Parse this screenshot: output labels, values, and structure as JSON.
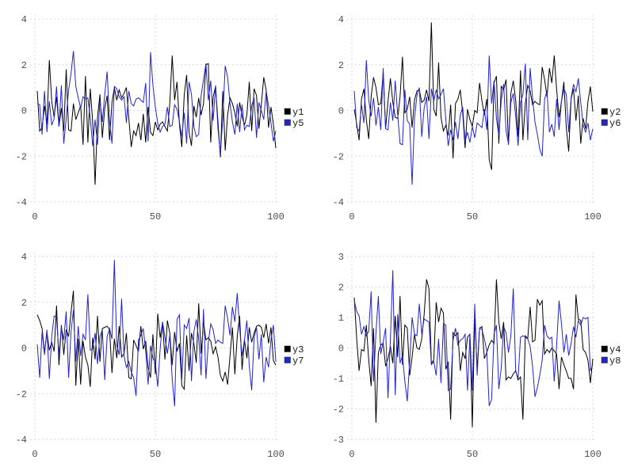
{
  "page": {
    "background": "#ffffff"
  },
  "style": {
    "grid_color": "#d8d8e2",
    "tick_label_color": "#4d4d57",
    "legend_text_color": "#1a1a1a",
    "series_black": "#000000",
    "series_blue": "#2323d0"
  },
  "chart_data": [
    {
      "type": "line",
      "position": "top-left",
      "title": "",
      "xlabel": "",
      "ylabel": "",
      "xlim": [
        0,
        100
      ],
      "ylim": [
        -4,
        4
      ],
      "xticks": [
        0,
        50,
        100
      ],
      "yticks": [
        -4,
        -2,
        0,
        2,
        4
      ],
      "x_start": 1,
      "x_step": 1,
      "grid": true,
      "legend_position": "right-middle",
      "series": [
        {
          "name": "y1",
          "color": "#000000",
          "values": [
            0.85,
            -0.9,
            -0.75,
            0.2,
            -0.6,
            2.2,
            0.4,
            -0.3,
            0.6,
            -0.7,
            0.1,
            -0.9,
            1.8,
            -0.85,
            -0.9,
            0.3,
            -0.4,
            -0.1,
            0.2,
            -1.5,
            1.5,
            -1.4,
            0.95,
            -0.5,
            -3.25,
            -0.3,
            0.7,
            -1.2,
            0.1,
            0.65,
            -1.3,
            0.35,
            1.0,
            0.45,
            0.9,
            0.55,
            0.75,
            1.0,
            -0.35,
            -1.6,
            -0.9,
            -1.1,
            -0.55,
            -1.3,
            -0.15,
            -1.4,
            0.15,
            -0.95,
            -1.1,
            -0.5,
            -0.85,
            -0.6,
            -0.5,
            -0.7,
            -0.9,
            0.3,
            2.4,
            0.45,
            1.25,
            -0.6,
            -1.6,
            0.7,
            1.55,
            -0.95,
            -1.55,
            0.2,
            -0.3,
            0.55,
            -0.2,
            0.3,
            2.0,
            2.05,
            -1.4,
            0.6,
            1.05,
            -0.5,
            -2.05,
            0.85,
            -1.75,
            -0.2,
            0.55,
            0.3,
            -0.1,
            -0.7,
            0.35,
            -0.25,
            -0.65,
            -0.2,
            1.25,
            -0.9,
            0.95,
            0.65,
            -0.8,
            0.25,
            1.45,
            0.9,
            -0.75,
            0.15,
            -0.6,
            -1.65
          ]
        },
        {
          "name": "y5",
          "color": "#2323d0",
          "values": [
            0.3,
            0.25,
            -1.05,
            0.85,
            -0.95,
            0.4,
            -0.65,
            -0.35,
            1.05,
            -0.7,
            1.1,
            -1.45,
            -0.35,
            0.9,
            1.6,
            2.6,
            1.05,
            0.55,
            0.1,
            0.6,
            0.5,
            0.55,
            -0.35,
            -1.55,
            -0.4,
            -1.5,
            0.45,
            -0.5,
            0.7,
            1.7,
            -0.45,
            -1.45,
            1.05,
            0.95,
            0.6,
            0.45,
            0.6,
            -0.55,
            0.85,
            0.3,
            0.2,
            0.5,
            0.55,
            0.45,
            0.35,
            1.2,
            -1.35,
            2.55,
            1.1,
            0.15,
            -0.55,
            -0.95,
            -0.7,
            -0.6,
            0.15,
            -0.7,
            -0.65,
            0.25,
            0.05,
            -0.5,
            -1.15,
            -0.1,
            -1.45,
            1.25,
            0.7,
            -0.7,
            -1.15,
            -1.05,
            0.65,
            1.35,
            2.05,
            0.45,
            1.3,
            -0.45,
            1.1,
            -0.8,
            -1.9,
            -0.35,
            1.95,
            1.45,
            0.3,
            -0.5,
            -1.05,
            0.3,
            -0.95,
            0.25,
            -0.85,
            -0.65,
            -0.7,
            0.2,
            0.55,
            -1.2,
            0.35,
            0.0,
            -0.4,
            0.85,
            0.2,
            -0.55,
            -1.35,
            -0.9
          ]
        }
      ]
    },
    {
      "type": "line",
      "position": "top-right",
      "title": "",
      "xlabel": "",
      "ylabel": "",
      "xlim": [
        0,
        100
      ],
      "ylim": [
        -4,
        4
      ],
      "xticks": [
        0,
        50,
        100
      ],
      "yticks": [
        -4,
        -2,
        0,
        2,
        4
      ],
      "x_start": 1,
      "x_step": 1,
      "grid": true,
      "legend_position": "right-middle",
      "series": [
        {
          "name": "y2",
          "color": "#000000",
          "values": [
            0.05,
            -0.6,
            -1.3,
            0.5,
            0.95,
            -0.4,
            -1.25,
            0.6,
            1.45,
            1.0,
            0.25,
            0.3,
            1.65,
            -0.8,
            0.4,
            1.4,
            0.35,
            -0.3,
            -0.35,
            0.6,
            2.35,
            -0.1,
            0.05,
            0.6,
            -0.75,
            0.45,
            0.85,
            0.9,
            0.35,
            0.45,
            0.9,
            0.4,
            3.85,
            0.05,
            -0.25,
            2.1,
            -0.3,
            -0.9,
            -0.65,
            -1.1,
            0.25,
            -2.1,
            0.3,
            0.5,
            0.9,
            -0.1,
            -1.65,
            0.05,
            -0.4,
            -0.7,
            0.0,
            -0.1,
            1.2,
            0.4,
            -0.2,
            0.5,
            -2.15,
            -2.6,
            1.2,
            1.5,
            -1.45,
            1.05,
            0.9,
            1.35,
            -1.5,
            0.75,
            1.3,
            0.45,
            -1.15,
            1.75,
            -1.3,
            0.3,
            1.1,
            0.85,
            0.25,
            0.4,
            0.3,
            0.25,
            1.9,
            1.35,
            0.6,
            1.85,
            1.2,
            2.4,
            0.9,
            -0.3,
            0.4,
            1.25,
            -0.75,
            -1.8,
            0.5,
            0.95,
            -0.45,
            0.65,
            -1.45,
            -0.35,
            -0.8,
            0.4,
            1.05,
            -0.05
          ]
        },
        {
          "name": "y6",
          "color": "#2323d0",
          "values": [
            0.85,
            -0.75,
            -0.9,
            0.25,
            -0.55,
            2.2,
            0.45,
            -0.25,
            0.55,
            -0.65,
            0.15,
            -0.85,
            1.85,
            -0.8,
            -0.85,
            0.35,
            -0.45,
            1.3,
            -0.15,
            -1.45,
            -1.5,
            0.9,
            -0.45,
            -0.6,
            -3.25,
            -0.35,
            0.65,
            1.0,
            -1.15,
            0.1,
            0.6,
            -1.25,
            0.95,
            0.4,
            0.9,
            0.5,
            0.7,
            0.95,
            -0.4,
            -1.55,
            -0.85,
            -1.3,
            -0.5,
            -1.25,
            -0.2,
            0.15,
            -1.35,
            -0.95,
            -1.4,
            -0.7,
            -1.2,
            -0.55,
            -0.65,
            -0.75,
            0.05,
            -0.85,
            2.4,
            0.3,
            1.3,
            -0.35,
            -1.1,
            0.45,
            1.15,
            -0.9,
            -1.45,
            0.35,
            0.75,
            -0.25,
            -1.55,
            0.35,
            0.7,
            2.05,
            -1.3,
            1.85,
            0.55,
            -0.5,
            -1.05,
            -1.7,
            -2.0,
            0.5,
            0.85,
            -0.95,
            -0.6,
            -1.15,
            0.5,
            -0.85,
            0.4,
            0.95,
            0.7,
            -0.95,
            0.55,
            1.15,
            0.8,
            1.4,
            0.35,
            -0.65,
            -0.95,
            -0.55,
            -1.3,
            -0.8
          ]
        }
      ]
    },
    {
      "type": "line",
      "position": "bottom-left",
      "title": "",
      "xlabel": "",
      "ylabel": "",
      "xlim": [
        0,
        100
      ],
      "ylim": [
        -4,
        4
      ],
      "xticks": [
        0,
        50,
        100
      ],
      "yticks": [
        -4,
        -2,
        0,
        2,
        4
      ],
      "x_start": 1,
      "x_step": 1,
      "grid": true,
      "legend_position": "right-middle",
      "series": [
        {
          "name": "y3",
          "color": "#000000",
          "values": [
            1.45,
            1.2,
            0.85,
            -0.2,
            0.7,
            -0.1,
            0.25,
            -0.15,
            1.85,
            -0.75,
            1.0,
            -0.3,
            0.8,
            0.5,
            1.55,
            2.5,
            -1.65,
            0.4,
            -1.6,
            0.3,
            -0.4,
            -0.75,
            -1.7,
            0.45,
            -0.5,
            1.4,
            -0.6,
            0.85,
            0.9,
            0.95,
            0.8,
            -1.1,
            0.4,
            -0.45,
            0.95,
            -0.4,
            -0.25,
            0.65,
            -1.3,
            -1.35,
            0.35,
            0.1,
            -0.15,
            0.95,
            -0.05,
            0.3,
            -0.85,
            -1.3,
            0.6,
            -1.15,
            1.5,
            0.45,
            1.1,
            -0.5,
            1.2,
            0.65,
            -0.75,
            0.7,
            -0.15,
            0.2,
            -1.65,
            -1.8,
            0.55,
            -1.0,
            0.65,
            0.2,
            -0.65,
            1.95,
            -0.25,
            1.15,
            0.35,
            0.45,
            0.3,
            -0.25,
            0.05,
            -0.4,
            -1.2,
            -1.45,
            -1.05,
            -1.6,
            -0.35,
            0.9,
            -1.15,
            0.5,
            1.4,
            -0.95,
            0.35,
            -0.45,
            0.9,
            0.25,
            0.65,
            0.95,
            1.0,
            0.9,
            0.45,
            1.05,
            0.2,
            0.9,
            -0.55,
            -0.75
          ]
        },
        {
          "name": "y7",
          "color": "#2323d0",
          "values": [
            0.15,
            -1.3,
            0.7,
            -0.3,
            0.8,
            -1.35,
            0.5,
            1.4,
            1.35,
            -0.3,
            0.9,
            0.35,
            1.6,
            -1.3,
            0.7,
            1.65,
            -0.6,
            0.95,
            -0.35,
            0.6,
            0.35,
            2.35,
            -0.1,
            -0.05,
            0.65,
            -0.7,
            0.5,
            0.8,
            -1.4,
            0.5,
            0.85,
            0.4,
            3.85,
            0.1,
            -0.3,
            2.15,
            -0.35,
            -0.85,
            -0.6,
            -1.05,
            -1.3,
            -2.1,
            0.35,
            0.55,
            0.85,
            -0.15,
            -1.6,
            0.1,
            -0.45,
            -0.65,
            -1.7,
            -0.05,
            1.15,
            0.45,
            -0.25,
            0.55,
            -1.35,
            -2.55,
            1.25,
            1.45,
            -1.4,
            1.0,
            0.85,
            1.3,
            -1.45,
            0.7,
            1.25,
            0.4,
            -1.2,
            1.7,
            -1.35,
            0.25,
            1.05,
            0.8,
            0.2,
            0.35,
            0.25,
            0.2,
            1.85,
            1.3,
            0.55,
            1.8,
            1.15,
            2.4,
            0.85,
            -0.35,
            0.35,
            1.2,
            -0.8,
            -1.85,
            0.45,
            0.9,
            -0.5,
            0.6,
            -1.5,
            -0.4,
            -0.85,
            0.35,
            1.0,
            -0.6
          ]
        }
      ]
    },
    {
      "type": "line",
      "position": "bottom-right",
      "title": "",
      "xlabel": "",
      "ylabel": "",
      "xlim": [
        0,
        100
      ],
      "ylim": [
        -3,
        3
      ],
      "xticks": [
        0,
        50,
        100
      ],
      "yticks": [
        -3,
        -2,
        -1,
        0,
        1,
        2,
        3
      ],
      "x_start": 1,
      "x_step": 1,
      "grid": true,
      "legend_position": "right-middle",
      "series": [
        {
          "name": "y4",
          "color": "#000000",
          "values": [
            1.65,
            0.3,
            -0.75,
            -0.05,
            -0.1,
            0.75,
            -0.4,
            -1.25,
            0.65,
            -2.45,
            -0.15,
            0.1,
            0.15,
            -0.6,
            -0.35,
            0.05,
            -0.5,
            1.05,
            -0.3,
            1.7,
            -0.55,
            0.75,
            0.65,
            -0.9,
            -0.3,
            0.45,
            0.0,
            -0.05,
            0.3,
            1.1,
            2.25,
            1.95,
            -0.5,
            -0.4,
            1.5,
            0.85,
            1.3,
            1.15,
            -0.7,
            -0.45,
            -2.35,
            0.5,
            0.4,
            0.5,
            -0.75,
            -0.15,
            -0.35,
            0.35,
            0.45,
            -2.6,
            1.0,
            -0.7,
            0.65,
            0.7,
            -0.35,
            -0.15,
            0.1,
            0.25,
            0.15,
            2.25,
            0.85,
            0.3,
            0.85,
            -1.05,
            -0.95,
            -1.0,
            -0.85,
            -0.75,
            -1.05,
            -0.95,
            -2.35,
            0.4,
            0.3,
            1.35,
            0.2,
            0.25,
            1.6,
            1.4,
            1.55,
            -0.2,
            -0.05,
            -0.15,
            0.0,
            -0.1,
            -0.2,
            -1.35,
            -0.3,
            -0.55,
            -0.75,
            -1.0,
            -1.0,
            -1.35,
            1.75,
            0.95,
            0.9,
            -0.05,
            -0.15,
            -0.4,
            -1.15,
            -0.35
          ]
        },
        {
          "name": "y8",
          "color": "#2323d0",
          "values": [
            1.55,
            1.2,
            1.05,
            0.45,
            0.7,
            0.4,
            0.55,
            1.85,
            -1.1,
            0.5,
            1.7,
            -0.2,
            0.2,
            0.65,
            -1.65,
            0.3,
            2.55,
            -1.55,
            1.1,
            -0.5,
            -0.25,
            -1.1,
            -1.75,
            -0.45,
            1.0,
            0.45,
            0.4,
            1.45,
            0.45,
            0.95,
            0.9,
            0.85,
            -0.55,
            -0.45,
            -0.9,
            0.3,
            -1.15,
            0.8,
            0.75,
            -1.4,
            -1.35,
            0.25,
            0.65,
            0.1,
            0.25,
            0.3,
            0.45,
            -1.4,
            0.45,
            -1.4,
            1.45,
            -0.9,
            0.65,
            0.6,
            0.3,
            -0.1,
            -1.9,
            -1.7,
            0.45,
            0.75,
            -1.35,
            -0.65,
            0.7,
            0.5,
            -0.15,
            0.4,
            1.95,
            -0.75,
            -1.0,
            0.35,
            0.4,
            0.35,
            0.3,
            0.05,
            -0.6,
            -1.6,
            -1.3,
            -0.9,
            -0.4,
            0.75,
            0.4,
            0.3,
            0.35,
            -1.1,
            0.1,
            1.55,
            0.8,
            -0.15,
            0.45,
            -0.25,
            0.15,
            0.7,
            0.35,
            0.9,
            0.75,
            1.0,
            0.95,
            1.0,
            -0.75,
            -0.55
          ]
        }
      ]
    }
  ]
}
